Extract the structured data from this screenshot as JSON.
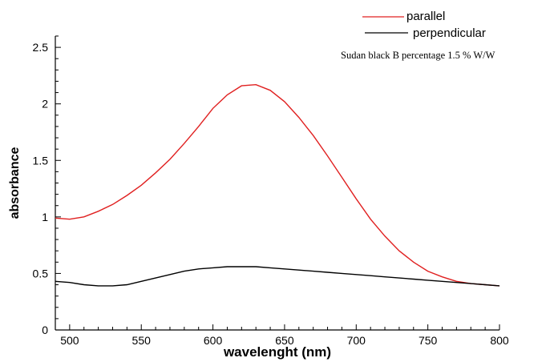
{
  "chart_data": {
    "type": "line",
    "title": "",
    "xlabel": "wavelenght (nm)",
    "ylabel": "absorbance",
    "xlim": [
      490,
      800
    ],
    "ylim": [
      0,
      2.6
    ],
    "x_ticks": [
      500,
      550,
      600,
      650,
      700,
      750,
      800
    ],
    "y_ticks": [
      0,
      0.5,
      1,
      1.5,
      2,
      2.5
    ],
    "y_tick_labels": [
      "0",
      "0.5",
      "1",
      "1.5",
      "2",
      "2.5"
    ],
    "grid": false,
    "legend_position": "top-right",
    "annotation": "Sudan black B percentage 1.5 % W/W",
    "series": [
      {
        "name": "parallel",
        "color": "#e02020",
        "x": [
          490,
          500,
          510,
          520,
          530,
          540,
          550,
          560,
          570,
          580,
          590,
          600,
          610,
          620,
          630,
          640,
          650,
          660,
          670,
          680,
          690,
          700,
          710,
          720,
          730,
          740,
          750,
          760,
          770,
          780,
          790,
          800
        ],
        "y": [
          0.99,
          0.98,
          1.0,
          1.05,
          1.11,
          1.19,
          1.28,
          1.39,
          1.51,
          1.65,
          1.8,
          1.96,
          2.08,
          2.16,
          2.17,
          2.12,
          2.02,
          1.88,
          1.72,
          1.54,
          1.35,
          1.16,
          0.98,
          0.83,
          0.7,
          0.6,
          0.52,
          0.47,
          0.43,
          0.41,
          0.4,
          0.39
        ]
      },
      {
        "name": "perpendicular",
        "color": "#000000",
        "x": [
          490,
          500,
          510,
          520,
          530,
          540,
          550,
          560,
          570,
          580,
          590,
          600,
          610,
          620,
          630,
          640,
          650,
          660,
          670,
          680,
          690,
          700,
          710,
          720,
          730,
          740,
          750,
          760,
          770,
          780,
          790,
          800
        ],
        "y": [
          0.43,
          0.42,
          0.4,
          0.39,
          0.39,
          0.4,
          0.43,
          0.46,
          0.49,
          0.52,
          0.54,
          0.55,
          0.56,
          0.56,
          0.56,
          0.55,
          0.54,
          0.53,
          0.52,
          0.51,
          0.5,
          0.49,
          0.48,
          0.47,
          0.46,
          0.45,
          0.44,
          0.43,
          0.42,
          0.41,
          0.4,
          0.39
        ]
      }
    ]
  }
}
